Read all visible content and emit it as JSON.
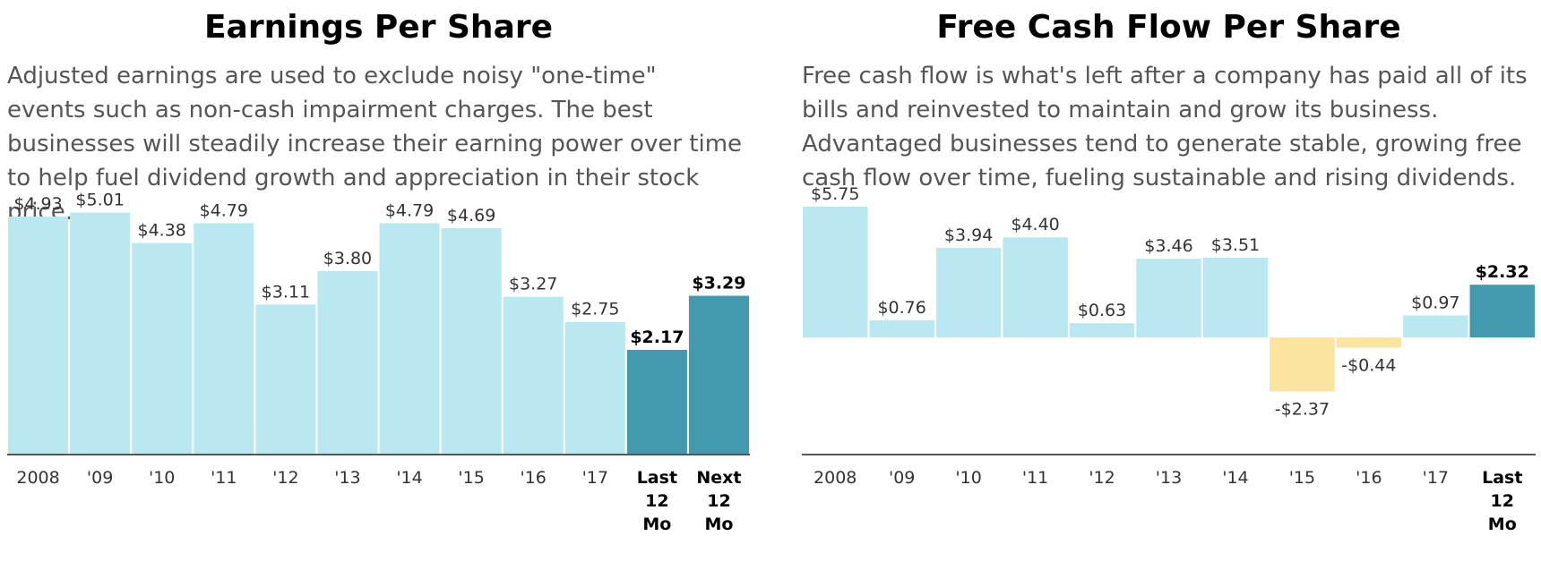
{
  "colors": {
    "past": "#bae8f0",
    "current": "#4399ae",
    "negative": "#fae49f",
    "axis": "#555555",
    "title": "#000000",
    "text": "#555555"
  },
  "eps": {
    "title": "Earnings Per Share",
    "description": "Adjusted earnings are used to exclude noisy \"one-time\" events such as non-cash impairment charges. The best businesses will steadily increase their earning power over time to help fuel dividend growth and appreciation in their stock price."
  },
  "fcf": {
    "title": "Free Cash Flow Per Share",
    "description": "Free cash flow is what's left after a company has paid all of its bills and reinvested to maintain and grow its business. Advantaged businesses tend to generate stable, growing free cash flow over time, fueling sustainable and rising dividends."
  },
  "chart_data": [
    {
      "type": "bar",
      "title": "Earnings Per Share",
      "categories": [
        "2008",
        "'09",
        "'10",
        "'11",
        "'12",
        "'13",
        "'14",
        "'15",
        "'16",
        "'17",
        "Last 12 Mo",
        "Next 12 Mo"
      ],
      "values": [
        4.93,
        5.01,
        4.38,
        4.79,
        3.11,
        3.8,
        4.79,
        4.69,
        3.27,
        2.75,
        2.17,
        3.29
      ],
      "labels": [
        "$4.93",
        "$5.01",
        "$4.38",
        "$4.79",
        "$3.11",
        "$3.80",
        "$4.79",
        "$4.69",
        "$3.27",
        "$2.75",
        "$2.17",
        "$3.29"
      ],
      "highlighted": [
        false,
        false,
        false,
        false,
        false,
        false,
        false,
        false,
        false,
        false,
        true,
        true
      ],
      "ylim": [
        0,
        5.3
      ],
      "xlabel": "",
      "ylabel": "",
      "grid": false
    },
    {
      "type": "bar",
      "title": "Free Cash Flow Per Share",
      "categories": [
        "2008",
        "'09",
        "'10",
        "'11",
        "'12",
        "'13",
        "'14",
        "'15",
        "'16",
        "'17",
        "Last 12 Mo"
      ],
      "values": [
        5.75,
        0.76,
        3.94,
        4.4,
        0.63,
        3.46,
        3.51,
        -2.37,
        -0.44,
        0.97,
        2.32
      ],
      "labels": [
        "$5.75",
        "$0.76",
        "$3.94",
        "$4.40",
        "$0.63",
        "$3.46",
        "$3.51",
        "-$2.37",
        "-$0.44",
        "$0.97",
        "$2.32"
      ],
      "highlighted": [
        false,
        false,
        false,
        false,
        false,
        false,
        false,
        false,
        false,
        false,
        true
      ],
      "ylim": [
        -5.15,
        6.1
      ],
      "xlabel": "",
      "ylabel": "",
      "grid": false
    }
  ]
}
